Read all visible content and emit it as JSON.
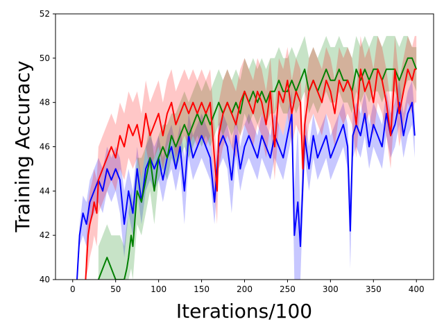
{
  "chart_data": {
    "type": "line",
    "title": "",
    "xlabel": "Iterations/100",
    "ylabel": "Training Accuracy",
    "xlim": [
      -20,
      420
    ],
    "ylim": [
      40,
      52
    ],
    "xticks": [
      0,
      50,
      100,
      150,
      200,
      250,
      300,
      350,
      400
    ],
    "yticks": [
      40,
      42,
      44,
      46,
      48,
      50,
      52
    ],
    "grid": false,
    "legend": "none",
    "series": [
      {
        "color": "#0000ff",
        "band_color": "#0000ff",
        "x": [
          5,
          8,
          12,
          16,
          20,
          25,
          30,
          35,
          40,
          45,
          50,
          55,
          60,
          65,
          70,
          75,
          80,
          85,
          90,
          95,
          100,
          105,
          110,
          115,
          120,
          125,
          130,
          135,
          140,
          145,
          150,
          155,
          160,
          165,
          170,
          175,
          180,
          185,
          190,
          195,
          200,
          205,
          210,
          215,
          220,
          225,
          230,
          235,
          240,
          245,
          250,
          255,
          258,
          262,
          265,
          270,
          275,
          280,
          285,
          290,
          295,
          300,
          305,
          310,
          315,
          320,
          323,
          326,
          330,
          335,
          340,
          345,
          350,
          355,
          360,
          365,
          370,
          375,
          380,
          385,
          390,
          395,
          398
        ],
        "y": [
          40.0,
          42.0,
          43.0,
          42.5,
          43.5,
          44.0,
          44.5,
          44.0,
          45.0,
          44.5,
          45.0,
          44.5,
          42.5,
          44.0,
          43.0,
          45.0,
          43.5,
          45.0,
          45.5,
          45.0,
          45.5,
          44.5,
          45.5,
          46.0,
          45.0,
          46.0,
          44.0,
          46.5,
          45.5,
          46.0,
          46.5,
          46.0,
          45.5,
          43.5,
          46.0,
          46.5,
          46.0,
          44.5,
          46.5,
          45.0,
          46.0,
          46.5,
          46.0,
          45.5,
          46.5,
          46.0,
          45.5,
          46.5,
          46.0,
          45.5,
          46.5,
          47.5,
          42.0,
          43.5,
          41.5,
          46.5,
          45.0,
          46.5,
          45.5,
          46.0,
          46.5,
          45.5,
          46.0,
          46.5,
          47.0,
          46.0,
          42.2,
          46.5,
          47.0,
          46.5,
          47.5,
          46.0,
          47.0,
          46.5,
          46.0,
          47.5,
          46.5,
          47.0,
          48.0,
          46.5,
          47.5,
          48.0,
          46.5
        ],
        "lower": [
          40.0,
          41.5,
          42.0,
          41.5,
          42.5,
          43.0,
          43.5,
          43.0,
          44.0,
          43.5,
          44.0,
          43.0,
          41.0,
          43.0,
          42.0,
          44.0,
          42.5,
          44.0,
          44.5,
          44.0,
          44.5,
          43.5,
          44.5,
          45.0,
          44.0,
          45.0,
          42.5,
          45.5,
          44.5,
          45.0,
          45.5,
          45.0,
          44.5,
          42.5,
          45.0,
          45.5,
          45.0,
          43.0,
          45.5,
          44.0,
          45.0,
          45.5,
          45.0,
          44.5,
          45.5,
          45.0,
          44.5,
          45.5,
          45.0,
          44.5,
          45.5,
          46.5,
          40.0,
          40.0,
          40.0,
          45.5,
          44.0,
          45.5,
          44.5,
          45.0,
          45.5,
          44.5,
          45.0,
          45.5,
          46.0,
          45.0,
          40.5,
          45.5,
          46.0,
          45.5,
          46.5,
          45.0,
          46.0,
          45.5,
          45.0,
          46.5,
          45.5,
          46.0,
          47.0,
          45.5,
          46.5,
          47.0,
          45.5
        ],
        "upper": [
          40.5,
          42.5,
          43.8,
          43.5,
          44.5,
          45.0,
          45.5,
          45.0,
          46.0,
          45.5,
          46.0,
          45.5,
          44.0,
          45.0,
          44.0,
          46.0,
          44.5,
          46.0,
          46.5,
          46.0,
          46.5,
          45.5,
          46.5,
          47.0,
          46.0,
          47.0,
          45.5,
          47.5,
          46.5,
          47.0,
          47.5,
          47.0,
          46.5,
          44.5,
          47.0,
          47.5,
          47.0,
          46.0,
          47.5,
          46.0,
          47.0,
          47.5,
          47.0,
          46.5,
          47.5,
          47.0,
          46.5,
          47.5,
          47.0,
          46.5,
          47.5,
          48.5,
          44.0,
          47.0,
          43.0,
          47.5,
          46.0,
          47.5,
          46.5,
          47.0,
          47.5,
          46.5,
          47.0,
          47.5,
          48.0,
          47.0,
          44.0,
          47.5,
          48.0,
          47.5,
          48.5,
          47.0,
          48.0,
          47.5,
          47.0,
          48.5,
          47.5,
          48.0,
          49.0,
          47.5,
          48.5,
          49.0,
          47.5
        ]
      },
      {
        "color": "#008000",
        "band_color": "#008000",
        "x": [
          30,
          35,
          40,
          45,
          50,
          55,
          60,
          63,
          65,
          68,
          70,
          75,
          80,
          85,
          90,
          95,
          100,
          105,
          110,
          115,
          120,
          125,
          130,
          135,
          140,
          145,
          150,
          155,
          160,
          165,
          170,
          175,
          180,
          185,
          190,
          195,
          200,
          205,
          210,
          215,
          220,
          225,
          230,
          235,
          240,
          245,
          250,
          255,
          260,
          265,
          270,
          275,
          280,
          285,
          290,
          295,
          300,
          305,
          310,
          315,
          320,
          325,
          330,
          335,
          340,
          345,
          350,
          355,
          360,
          365,
          370,
          375,
          380,
          385,
          390,
          395,
          400
        ],
        "y": [
          40.0,
          40.5,
          41.0,
          40.5,
          40.0,
          40.0,
          40.0,
          40.5,
          41.0,
          42.0,
          41.5,
          44.0,
          43.5,
          44.5,
          45.5,
          44.0,
          45.5,
          46.0,
          45.5,
          46.5,
          46.0,
          46.5,
          47.0,
          46.5,
          47.0,
          47.5,
          47.0,
          47.5,
          47.0,
          47.5,
          48.0,
          47.5,
          48.0,
          47.5,
          48.0,
          47.5,
          48.5,
          48.0,
          48.5,
          48.0,
          48.5,
          48.0,
          48.5,
          48.5,
          49.0,
          48.5,
          48.5,
          49.0,
          48.5,
          49.0,
          49.5,
          48.5,
          49.0,
          48.5,
          49.0,
          49.5,
          49.0,
          49.0,
          49.5,
          49.0,
          49.0,
          48.5,
          49.5,
          49.0,
          49.5,
          49.0,
          49.5,
          49.5,
          49.0,
          49.5,
          49.5,
          49.5,
          49.0,
          49.5,
          50.0,
          50.0,
          49.5
        ],
        "lower": [
          40.0,
          40.0,
          40.0,
          40.0,
          40.0,
          40.0,
          40.0,
          40.0,
          40.0,
          40.5,
          40.0,
          42.5,
          42.0,
          43.0,
          44.0,
          42.5,
          44.5,
          45.0,
          44.5,
          45.5,
          45.0,
          45.5,
          46.0,
          45.5,
          46.0,
          46.5,
          46.0,
          46.5,
          46.0,
          46.5,
          47.0,
          46.5,
          47.0,
          46.5,
          47.0,
          46.5,
          47.5,
          47.0,
          47.5,
          47.0,
          47.5,
          47.0,
          47.5,
          47.5,
          48.0,
          47.5,
          47.5,
          48.0,
          47.5,
          48.0,
          48.5,
          47.5,
          48.0,
          47.5,
          48.0,
          48.5,
          48.0,
          48.0,
          48.5,
          48.0,
          48.0,
          47.5,
          48.5,
          48.0,
          48.5,
          48.0,
          48.5,
          48.5,
          48.0,
          48.5,
          48.5,
          48.5,
          48.0,
          48.5,
          49.0,
          49.0,
          48.5
        ],
        "upper": [
          41.5,
          42.0,
          42.5,
          42.0,
          42.0,
          42.0,
          41.5,
          42.5,
          43.0,
          44.0,
          43.5,
          45.5,
          45.5,
          46.0,
          47.0,
          45.5,
          46.5,
          47.0,
          47.0,
          47.5,
          47.5,
          48.0,
          48.5,
          48.0,
          48.5,
          49.0,
          48.5,
          49.0,
          48.5,
          49.0,
          49.5,
          49.0,
          49.5,
          49.0,
          49.5,
          49.0,
          50.0,
          49.5,
          50.0,
          49.5,
          50.0,
          49.5,
          50.0,
          50.0,
          50.5,
          50.0,
          50.0,
          50.5,
          50.0,
          50.5,
          51.0,
          50.0,
          50.5,
          50.0,
          50.5,
          51.0,
          50.5,
          50.5,
          51.0,
          50.5,
          50.5,
          50.0,
          51.0,
          50.5,
          51.0,
          50.5,
          51.0,
          51.0,
          50.5,
          51.0,
          51.0,
          51.0,
          50.5,
          51.0,
          51.0,
          50.5,
          50.5
        ]
      },
      {
        "color": "#ff0000",
        "band_color": "#ff0000",
        "x": [
          15,
          18,
          20,
          23,
          25,
          28,
          30,
          35,
          40,
          45,
          50,
          55,
          60,
          65,
          70,
          75,
          80,
          85,
          90,
          95,
          100,
          105,
          110,
          115,
          120,
          125,
          130,
          135,
          140,
          145,
          150,
          155,
          160,
          165,
          168,
          170,
          175,
          180,
          185,
          190,
          195,
          200,
          205,
          210,
          215,
          220,
          225,
          230,
          235,
          240,
          245,
          250,
          255,
          260,
          265,
          268,
          270,
          275,
          280,
          285,
          290,
          295,
          300,
          305,
          310,
          315,
          320,
          325,
          330,
          335,
          340,
          345,
          350,
          355,
          360,
          365,
          370,
          375,
          380,
          385,
          390,
          395,
          398,
          400
        ],
        "y": [
          40.0,
          42.0,
          42.5,
          43.0,
          43.5,
          43.0,
          44.5,
          45.0,
          45.5,
          46.0,
          45.5,
          46.5,
          46.0,
          47.0,
          46.5,
          47.0,
          46.0,
          47.5,
          46.5,
          47.0,
          47.5,
          46.5,
          47.5,
          48.0,
          47.0,
          47.5,
          48.0,
          47.5,
          48.0,
          47.5,
          48.0,
          47.5,
          48.0,
          45.5,
          44.0,
          46.5,
          47.5,
          48.0,
          47.5,
          47.0,
          48.0,
          48.5,
          48.0,
          47.5,
          48.5,
          48.0,
          47.0,
          48.5,
          46.0,
          48.5,
          48.0,
          49.0,
          47.5,
          48.5,
          48.0,
          45.0,
          47.0,
          48.5,
          49.0,
          48.5,
          48.0,
          49.0,
          48.5,
          47.5,
          49.0,
          48.5,
          49.0,
          48.5,
          47.0,
          49.5,
          48.5,
          49.0,
          48.0,
          49.5,
          49.0,
          48.0,
          46.5,
          49.5,
          47.5,
          48.5,
          49.5,
          49.0,
          49.5,
          49.5
        ],
        "lower": [
          40.0,
          40.5,
          41.0,
          41.5,
          42.0,
          41.5,
          43.0,
          43.5,
          44.0,
          44.5,
          44.0,
          45.0,
          44.5,
          45.5,
          45.0,
          45.5,
          44.5,
          46.0,
          45.0,
          45.5,
          46.0,
          45.0,
          46.0,
          46.5,
          45.5,
          46.0,
          46.5,
          46.0,
          46.5,
          46.0,
          46.5,
          46.0,
          46.5,
          44.0,
          42.5,
          45.0,
          46.0,
          46.5,
          46.0,
          45.5,
          46.5,
          47.0,
          46.5,
          46.0,
          47.0,
          46.5,
          45.5,
          47.0,
          44.5,
          47.0,
          46.5,
          47.5,
          46.0,
          47.0,
          46.5,
          43.5,
          45.5,
          47.0,
          47.5,
          47.0,
          46.5,
          47.5,
          47.0,
          46.0,
          47.5,
          47.0,
          47.5,
          47.0,
          45.5,
          48.0,
          47.0,
          47.5,
          46.5,
          48.0,
          47.5,
          46.5,
          45.0,
          48.0,
          46.0,
          47.0,
          48.0,
          47.5,
          48.0,
          48.0
        ],
        "upper": [
          41.0,
          43.5,
          44.0,
          44.5,
          45.0,
          44.5,
          46.0,
          46.5,
          47.0,
          47.5,
          47.0,
          48.0,
          47.5,
          48.5,
          48.0,
          48.5,
          47.5,
          49.0,
          48.0,
          48.5,
          49.0,
          48.0,
          49.0,
          49.5,
          48.5,
          49.0,
          49.5,
          49.0,
          49.5,
          49.0,
          49.5,
          49.0,
          49.5,
          47.0,
          45.5,
          48.0,
          49.0,
          49.5,
          49.0,
          48.5,
          49.5,
          50.0,
          49.5,
          49.0,
          50.0,
          49.5,
          48.5,
          50.0,
          47.5,
          50.0,
          49.5,
          50.5,
          49.0,
          50.0,
          49.5,
          46.5,
          48.5,
          50.0,
          50.5,
          50.0,
          49.5,
          50.5,
          50.0,
          49.0,
          50.5,
          50.0,
          50.5,
          50.0,
          48.5,
          51.0,
          50.0,
          50.5,
          49.5,
          51.0,
          50.5,
          49.5,
          48.0,
          51.0,
          49.0,
          50.0,
          51.0,
          50.5,
          51.0,
          51.0
        ]
      }
    ]
  }
}
